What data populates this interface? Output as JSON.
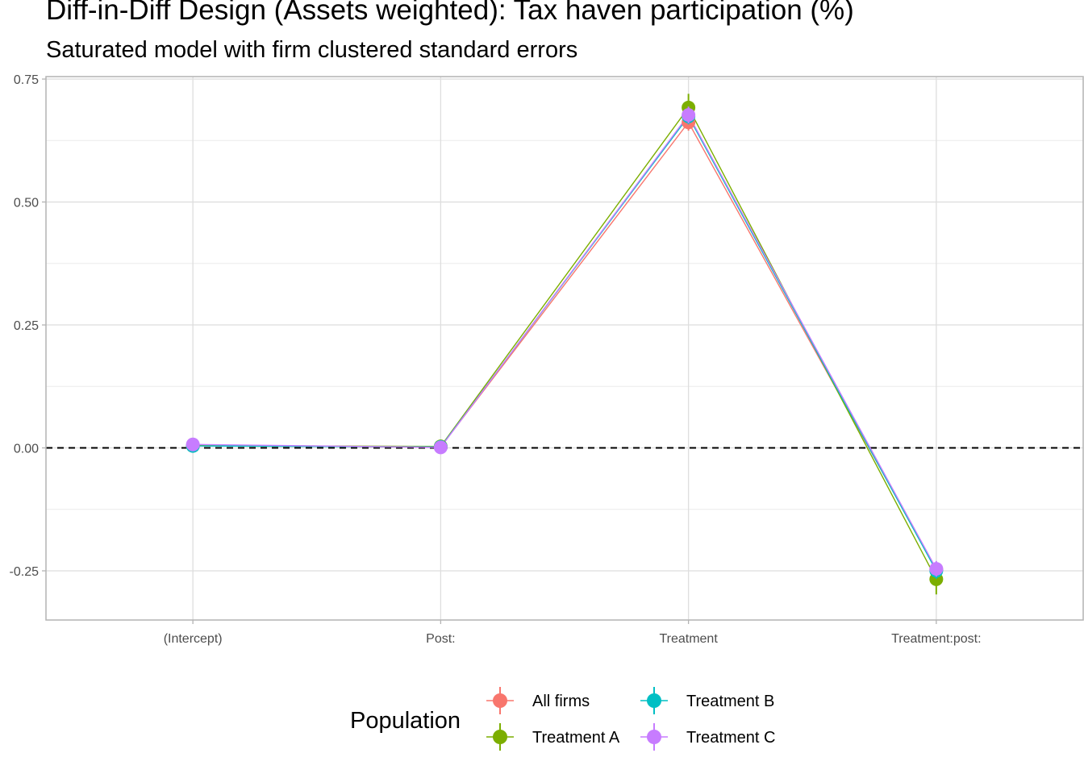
{
  "title": "Diff-in-Diff Design (Assets weighted): Tax haven participation (%)",
  "subtitle": "Saturated model with firm clustered standard errors",
  "chart_data": {
    "type": "line",
    "title": "Diff-in-Diff Design (Assets weighted): Tax haven participation (%)",
    "subtitle": "Saturated model with firm clustered standard errors",
    "xlabel": "",
    "ylabel": "",
    "categories": [
      "(Intercept)",
      "Post:",
      "Treatment",
      "Treatment:post:"
    ],
    "ylim": [
      -0.35,
      0.755
    ],
    "yticks": [
      0.75,
      0.5,
      0.25,
      0.0,
      -0.25
    ],
    "ytick_labels": [
      "0.75",
      "0.50",
      "0.25",
      "0.00",
      "-0.25"
    ],
    "reference_line": 0,
    "grid": true,
    "legend": {
      "title": "Population",
      "position": "bottom"
    },
    "series": [
      {
        "name": "All firms",
        "color": "#F8766D",
        "values": [
          0.004,
          0.002,
          0.662,
          -0.247
        ],
        "ci": [
          [
            0.0,
            0.008
          ],
          [
            -0.002,
            0.006
          ],
          [
            0.645,
            0.679
          ],
          [
            -0.262,
            -0.232
          ]
        ]
      },
      {
        "name": "Treatment A",
        "color": "#7CAE00",
        "values": [
          0.005,
          0.003,
          0.692,
          -0.267
        ],
        "ci": [
          [
            0.001,
            0.009
          ],
          [
            -0.001,
            0.007
          ],
          [
            0.668,
            0.72
          ],
          [
            -0.298,
            -0.238
          ]
        ]
      },
      {
        "name": "Treatment B",
        "color": "#00BFC4",
        "values": [
          0.004,
          0.002,
          0.674,
          -0.25
        ],
        "ci": [
          [
            0.0,
            0.008
          ],
          [
            -0.002,
            0.006
          ],
          [
            0.658,
            0.69
          ],
          [
            -0.266,
            -0.234
          ]
        ]
      },
      {
        "name": "Treatment C",
        "color": "#C77CFF",
        "values": [
          0.007,
          0.001,
          0.677,
          -0.246
        ],
        "ci": [
          [
            0.003,
            0.011
          ],
          [
            -0.003,
            0.005
          ],
          [
            0.66,
            0.694
          ],
          [
            -0.262,
            -0.23
          ]
        ]
      }
    ]
  }
}
